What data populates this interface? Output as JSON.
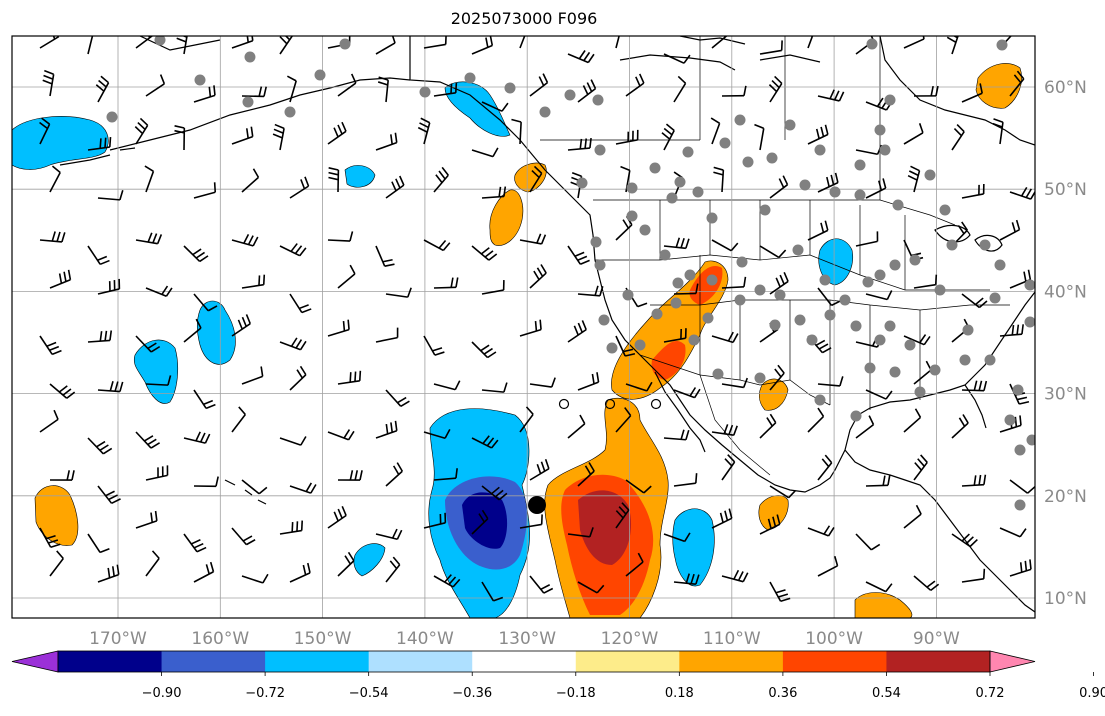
{
  "title": "2025073000 F096",
  "map": {
    "lon_range": [
      -178,
      -78
    ],
    "lat_range": [
      8,
      65
    ],
    "gridlines": true,
    "lon_labels": [
      "170°W",
      "160°W",
      "150°W",
      "140°W",
      "130°W",
      "120°W",
      "110°W",
      "100°W",
      "90°W"
    ],
    "lat_labels": [
      "10°N",
      "20°N",
      "30°N",
      "40°N",
      "50°N",
      "60°N"
    ],
    "field_colors": {
      "-0.90": "#9b30d8",
      "-0.72": "#00008b",
      "-0.54": "#3a5fcd",
      "-0.36": "#00bfff",
      "-0.18": "#aee0ff",
      "0.18": "#fdec8a",
      "0.36": "#ffa500",
      "0.54": "#ff4500",
      "0.72": "#b22222",
      "0.90": "#ff86b0"
    },
    "markers": {
      "filled_circle_color": "#808080",
      "large_black_dot": "black"
    }
  },
  "colorbar": {
    "tick_labels": [
      "−0.90",
      "−0.72",
      "−0.54",
      "−0.36",
      "−0.18",
      "0.18",
      "0.36",
      "0.54",
      "0.72",
      "0.90"
    ],
    "colors": [
      "#9b30d8",
      "#00008b",
      "#3a5fcd",
      "#00bfff",
      "#aee0ff",
      "#ffffff",
      "#fdec8a",
      "#ffa500",
      "#ff4500",
      "#b22222",
      "#ff86b0"
    ],
    "extend": "both"
  }
}
